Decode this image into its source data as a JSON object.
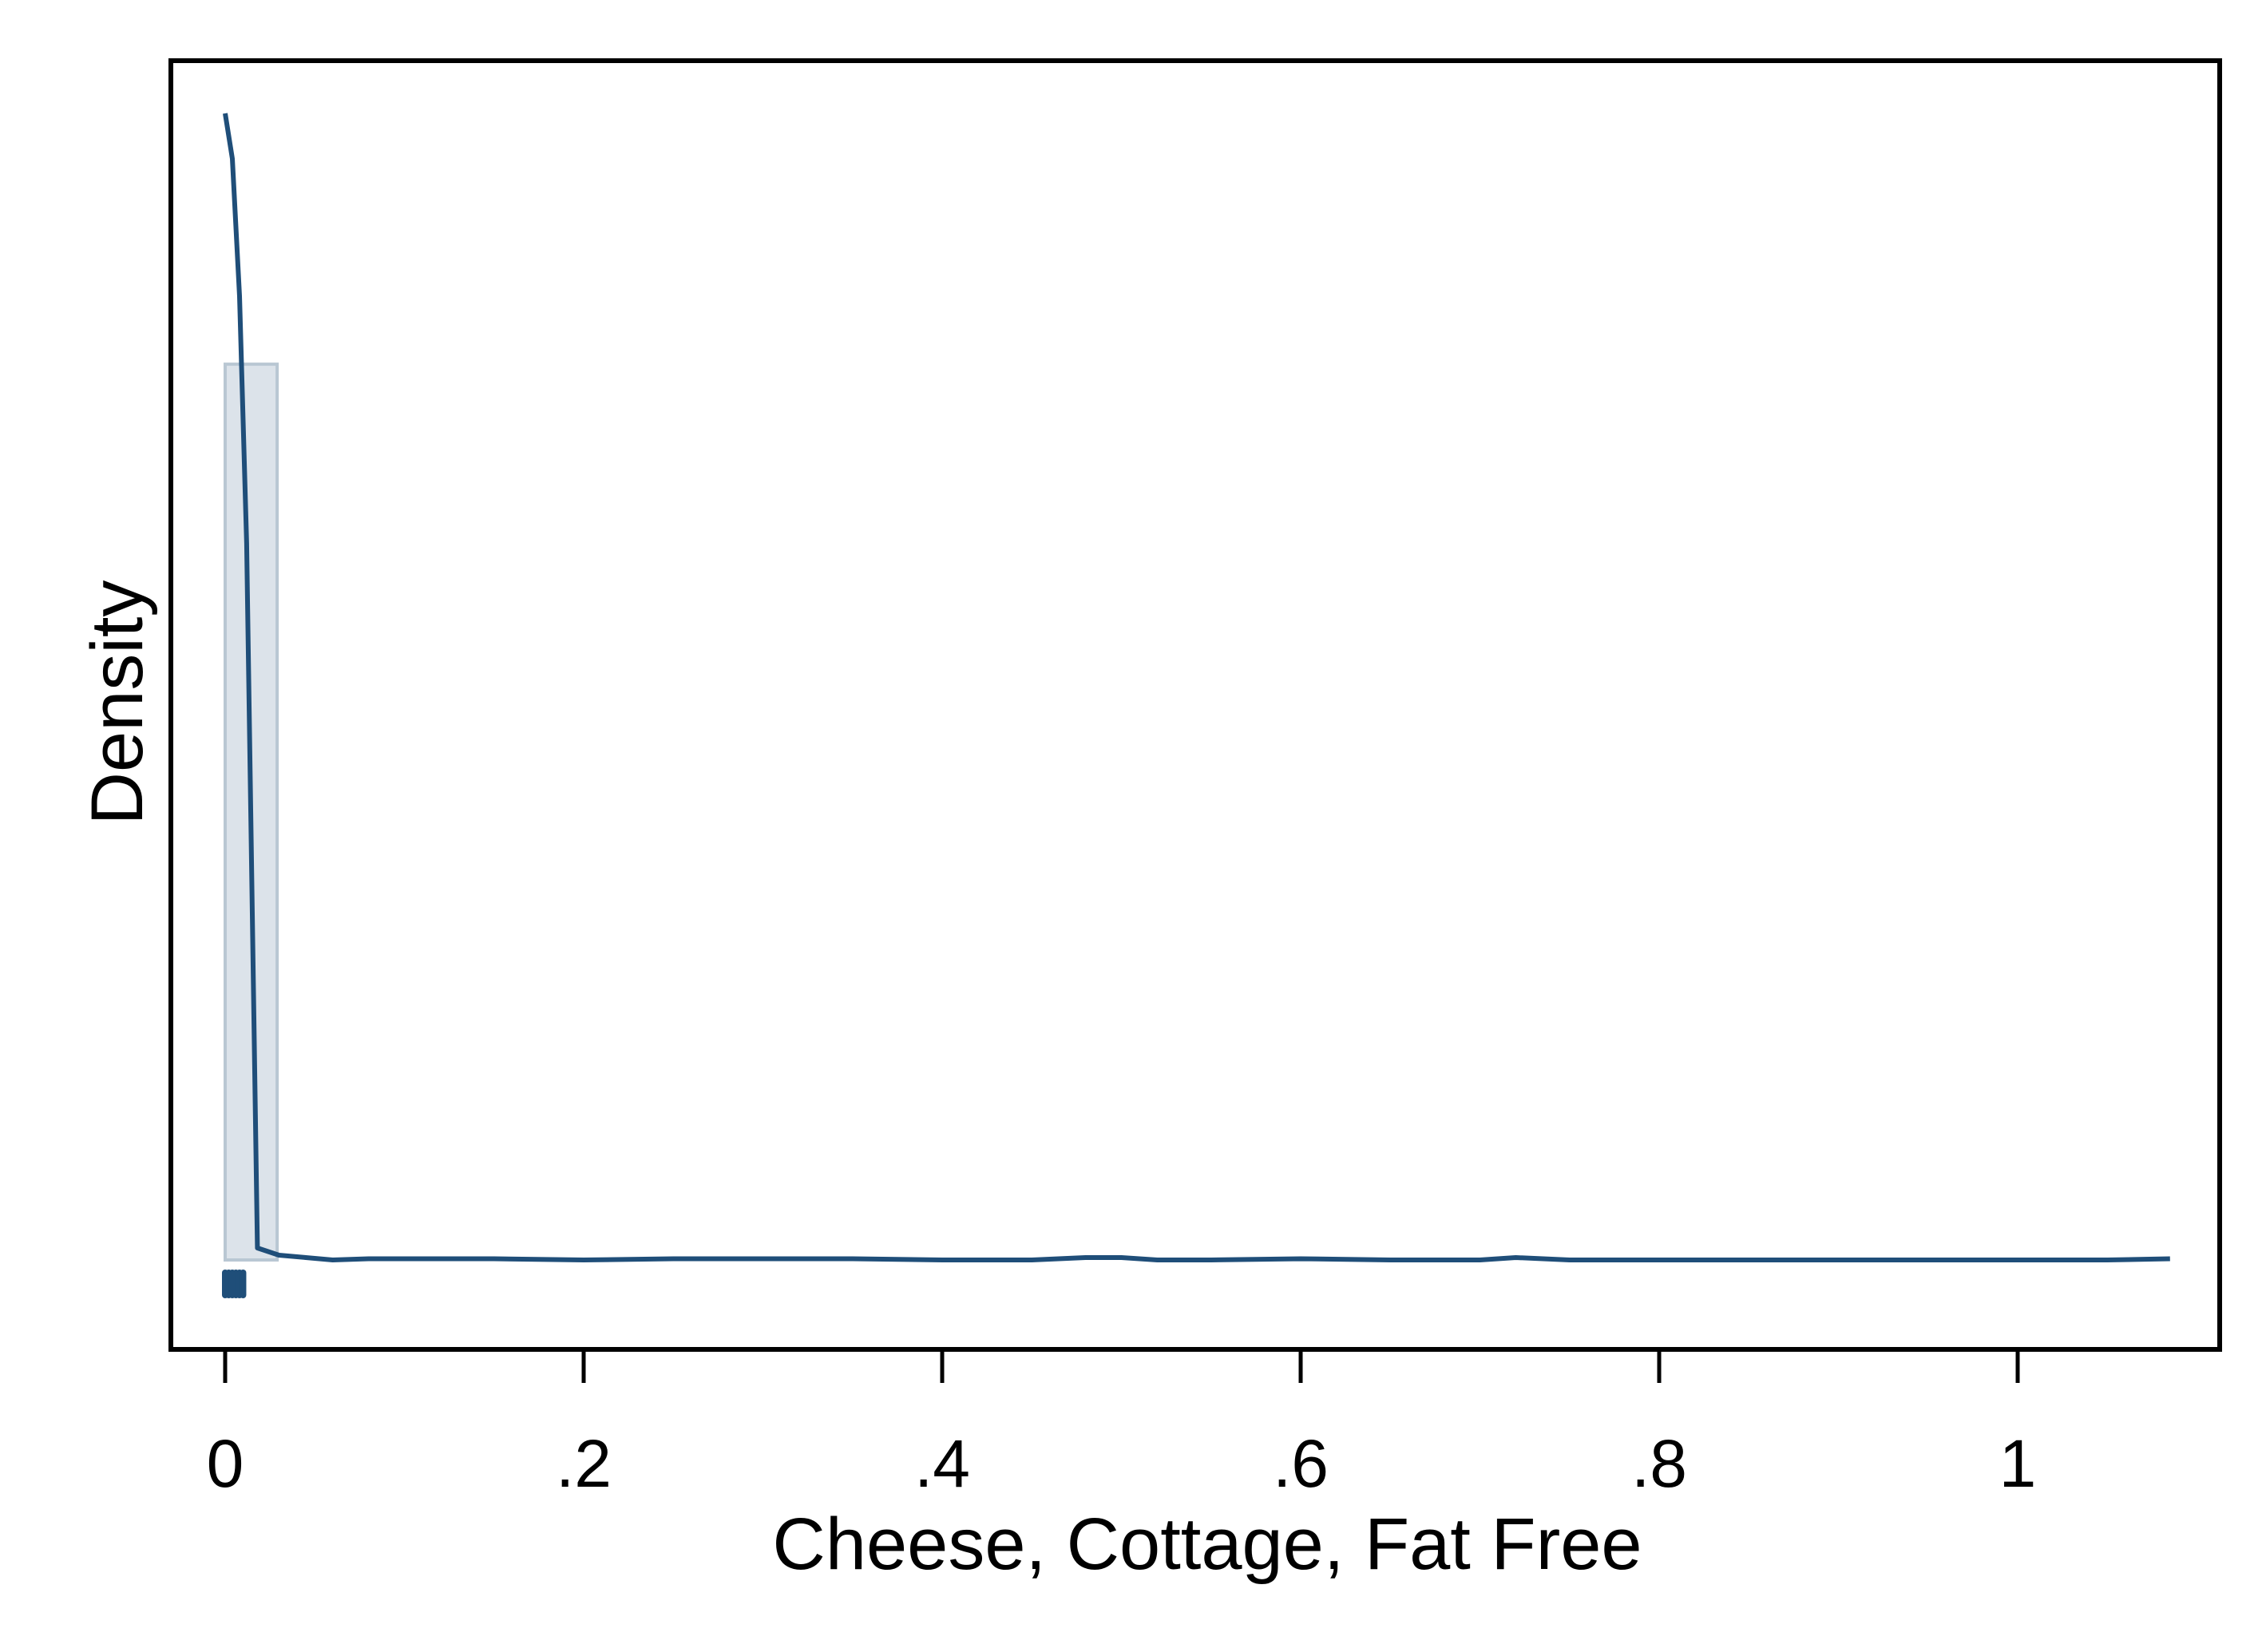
{
  "chart_data": {
    "type": "histogram",
    "xlabel": "Cheese, Cottage, Fat Free",
    "ylabel": "Density",
    "xlim": [
      -0.03,
      1.12
    ],
    "ylim": [
      0,
      1
    ],
    "x_ticks": [
      0,
      0.2,
      0.4,
      0.6,
      0.8,
      1
    ],
    "x_tick_labels": [
      "0",
      ".2",
      ".4",
      ".6",
      ".8",
      "1"
    ],
    "y_ticks_shown": false,
    "grid": false,
    "legend": "none",
    "histogram_bins": [
      {
        "start": 0.0,
        "end": 0.029,
        "density": 0.75
      }
    ],
    "density_curve": {
      "x": [
        0.0,
        0.004,
        0.008,
        0.012,
        0.018,
        0.022,
        0.03,
        0.045,
        0.06,
        0.08,
        0.1,
        0.12,
        0.15,
        0.2,
        0.25,
        0.3,
        0.35,
        0.4,
        0.45,
        0.48,
        0.5,
        0.52,
        0.55,
        0.6,
        0.65,
        0.7,
        0.72,
        0.75,
        0.8,
        0.85,
        0.9,
        0.95,
        1.0,
        1.05,
        1.085
      ],
      "y": [
        0.96,
        0.922,
        0.807,
        0.6,
        0.01,
        0.008,
        0.004,
        0.002,
        0.0,
        0.001,
        0.001,
        0.001,
        0.001,
        0.0,
        0.001,
        0.001,
        0.001,
        0.0,
        0.0,
        0.002,
        0.002,
        0.0,
        0.0,
        0.001,
        0.0,
        0.0,
        0.002,
        0.0,
        0.0,
        0.0,
        0.0,
        0.0,
        0.0,
        0.0,
        0.001
      ]
    },
    "rug_marks": {
      "x": [
        0.0,
        0.002,
        0.004,
        0.006,
        0.008,
        0.01
      ]
    },
    "colors": {
      "line": "#1f4e79",
      "bar_fill": "#dce3ea",
      "bar_stroke": "#b9c7d3",
      "rug": "#1f4e79",
      "frame": "#000000"
    }
  }
}
